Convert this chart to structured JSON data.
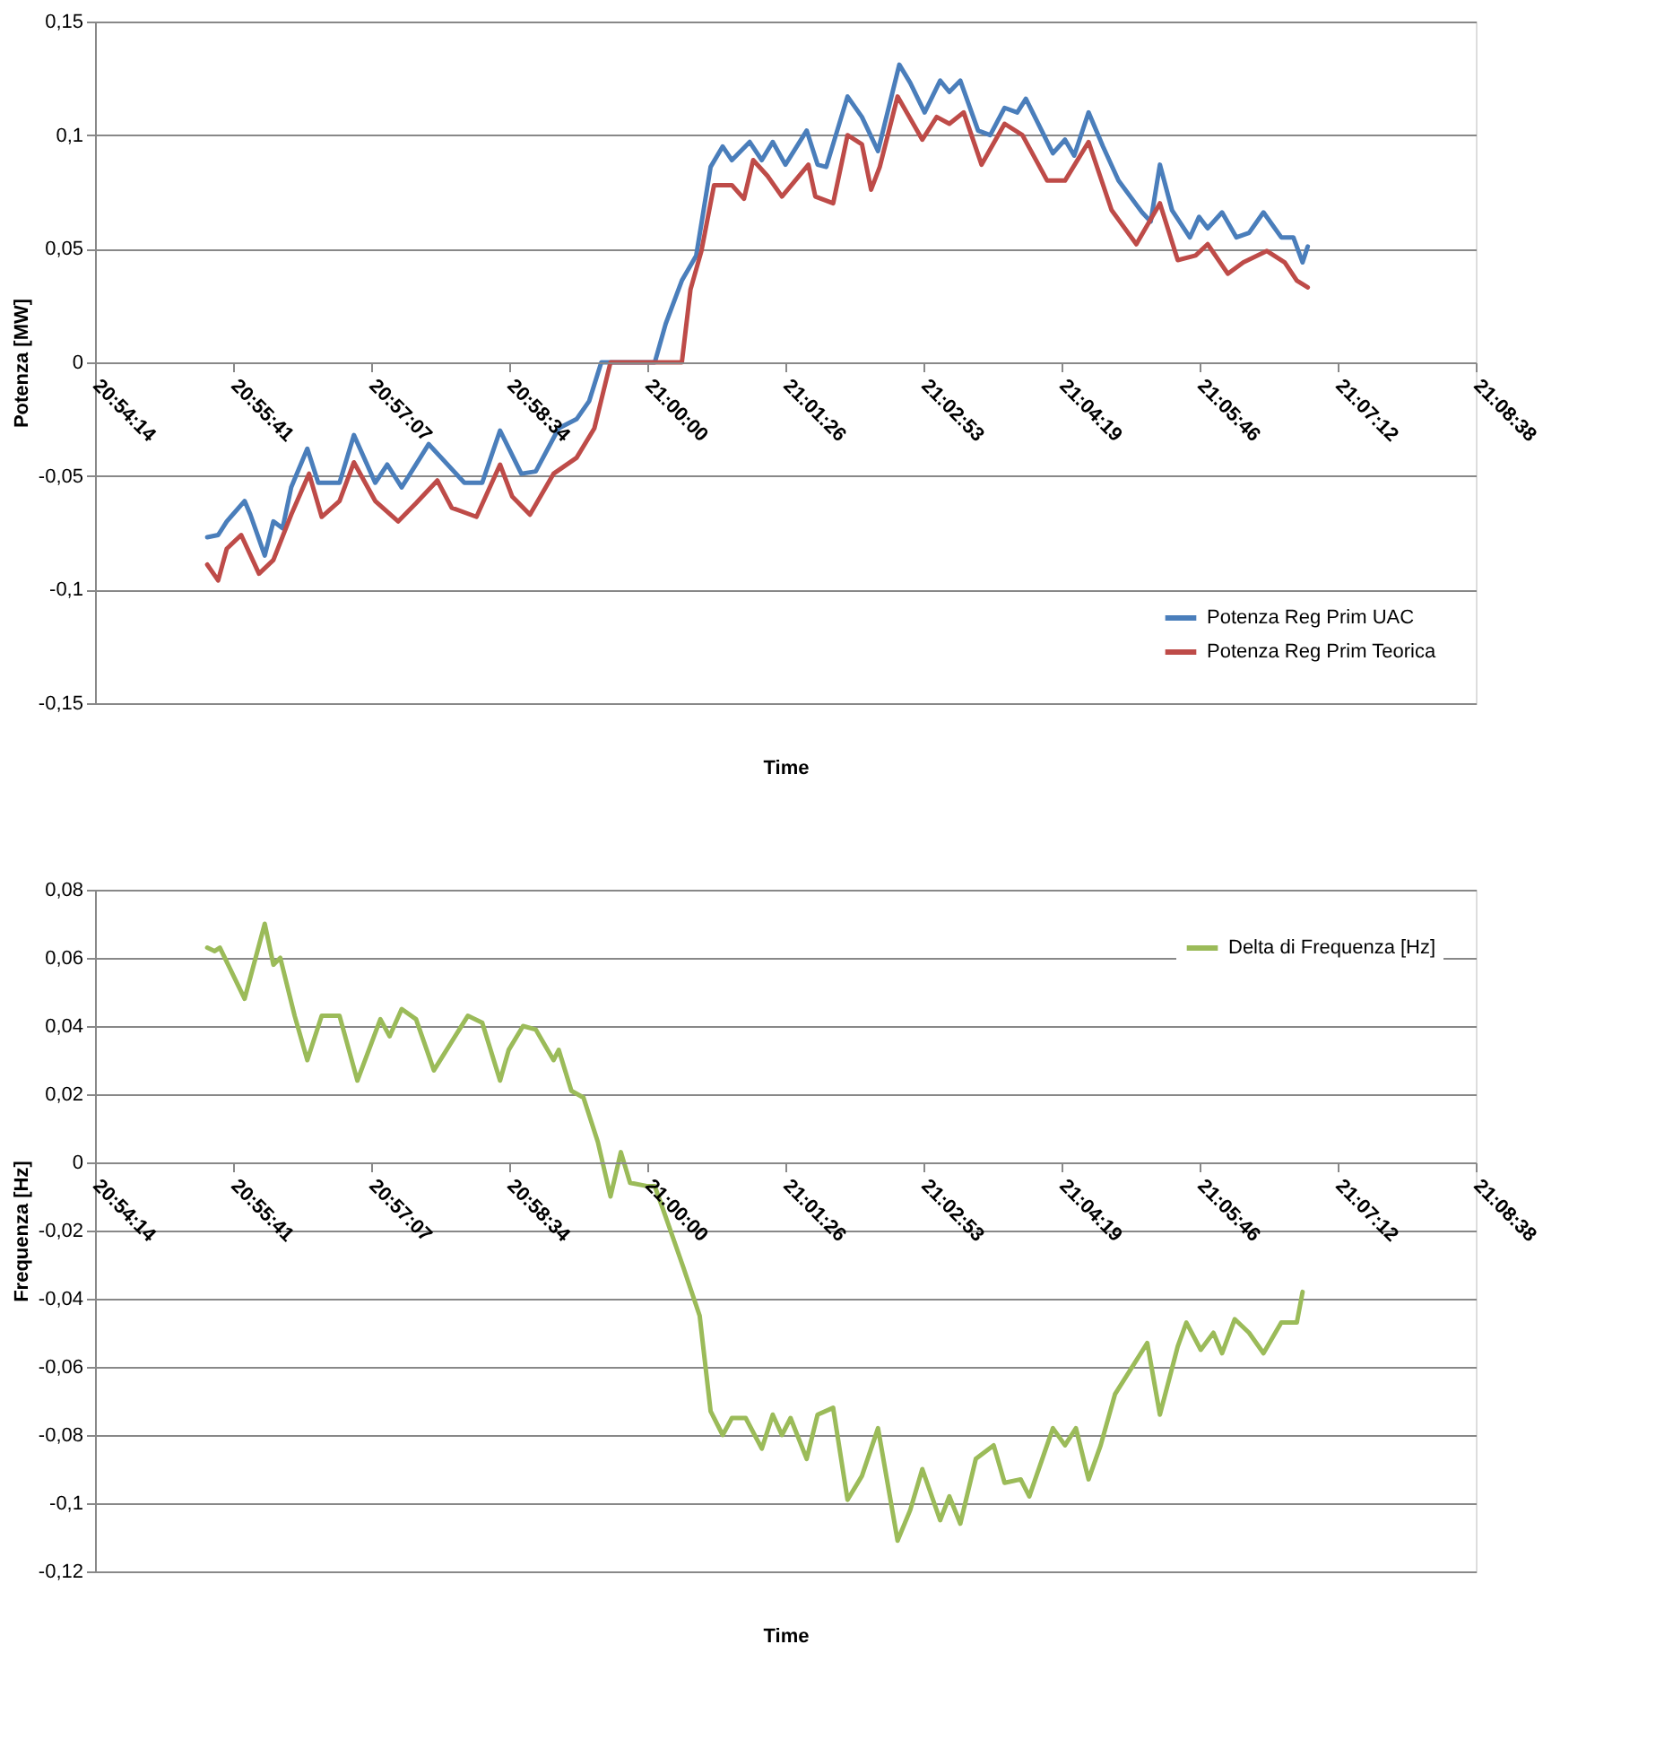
{
  "chart_data": [
    {
      "type": "line",
      "xlabel": "Time",
      "ylabel": "Potenza [MW]",
      "legend": "bottom right",
      "grid": "y",
      "line_style": "solid",
      "marker": "none",
      "xlim": [
        20.904,
        21.144
      ],
      "xticks": [
        {
          "value": 20.904,
          "label": "20:54:14"
        },
        {
          "value": 20.928,
          "label": "20:55:41"
        },
        {
          "value": 20.952,
          "label": "20:57:07"
        },
        {
          "value": 20.976,
          "label": "20:58:34"
        },
        {
          "value": 21.0,
          "label": "21:00:00"
        },
        {
          "value": 21.024,
          "label": "21:01:26"
        },
        {
          "value": 21.048,
          "label": "21:02:53"
        },
        {
          "value": 21.072,
          "label": "21:04:19"
        },
        {
          "value": 21.096,
          "label": "21:05:46"
        },
        {
          "value": 21.12,
          "label": "21:07:12"
        },
        {
          "value": 21.144,
          "label": "21:08:38"
        }
      ],
      "ylim": [
        -0.15,
        0.15
      ],
      "yticks": [
        {
          "value": -0.15,
          "label": "-0,15"
        },
        {
          "value": -0.1,
          "label": "-0,1"
        },
        {
          "value": -0.05,
          "label": "-0,05"
        },
        0,
        {
          "value": 0.05,
          "label": "0,05"
        },
        {
          "value": 0.1,
          "label": "0,1"
        },
        {
          "value": 0.15,
          "label": "0,15"
        }
      ],
      "series": [
        {
          "name": "Potenza Reg Prim UAC",
          "color": "#4a7ebb",
          "x": [
            20.9235,
            20.9254,
            20.9269,
            20.93,
            20.931,
            20.9335,
            20.935,
            20.9366,
            20.9381,
            20.9409,
            20.9428,
            20.9465,
            20.949,
            20.9527,
            20.9548,
            20.9573,
            20.962,
            20.9682,
            20.9713,
            20.9744,
            20.9781,
            20.9806,
            20.9846,
            20.9877,
            20.9899,
            20.992,
            21.0013,
            21.0032,
            21.006,
            21.0085,
            21.011,
            21.0131,
            21.0147,
            21.0178,
            21.0199,
            21.0218,
            21.024,
            21.0277,
            21.0296,
            21.0311,
            21.0348,
            21.0373,
            21.0401,
            21.0438,
            21.0457,
            21.0482,
            21.0509,
            21.0525,
            21.0544,
            21.0575,
            21.0596,
            21.0621,
            21.0643,
            21.0658,
            21.0705,
            21.0726,
            21.0742,
            21.0767,
            21.0792,
            21.0819,
            21.086,
            21.0875,
            21.0891,
            21.0912,
            21.0943,
            21.0959,
            21.0974,
            21.0999,
            21.1024,
            21.1046,
            21.1071,
            21.1102,
            21.1123,
            21.1139,
            21.1148
          ],
          "values": [
            -0.077,
            -0.076,
            -0.07,
            -0.061,
            -0.067,
            -0.085,
            -0.07,
            -0.073,
            -0.055,
            -0.038,
            -0.053,
            -0.053,
            -0.032,
            -0.053,
            -0.045,
            -0.055,
            -0.036,
            -0.053,
            -0.053,
            -0.03,
            -0.049,
            -0.048,
            -0.029,
            -0.025,
            -0.017,
            0,
            0,
            0.017,
            0.036,
            0.047,
            0.086,
            0.095,
            0.089,
            0.097,
            0.089,
            0.097,
            0.087,
            0.102,
            0.087,
            0.086,
            0.117,
            0.108,
            0.093,
            0.131,
            0.123,
            0.11,
            0.124,
            0.119,
            0.124,
            0.102,
            0.1,
            0.112,
            0.11,
            0.116,
            0.092,
            0.098,
            0.091,
            0.11,
            0.095,
            0.08,
            0.066,
            0.062,
            0.087,
            0.067,
            0.055,
            0.064,
            0.059,
            0.066,
            0.055,
            0.057,
            0.066,
            0.055,
            0.055,
            0.044,
            0.051
          ]
        },
        {
          "name": "Potenza Reg Prim Teorica",
          "color": "#be4b48",
          "x": [
            20.9235,
            20.9254,
            20.9269,
            20.9294,
            20.9325,
            20.935,
            20.9381,
            20.9412,
            20.9434,
            20.9465,
            20.949,
            20.9527,
            20.9567,
            20.9598,
            20.9635,
            20.966,
            20.9703,
            20.9744,
            20.9765,
            20.9796,
            20.9837,
            20.9877,
            20.9908,
            20.9936,
            21.006,
            21.0075,
            21.0094,
            21.0116,
            21.0147,
            21.0168,
            21.0184,
            21.0209,
            21.0234,
            21.028,
            21.0292,
            21.0323,
            21.0348,
            21.0373,
            21.0389,
            21.0404,
            21.0435,
            21.0478,
            21.0503,
            21.0525,
            21.055,
            21.0581,
            21.0621,
            21.0652,
            21.0695,
            21.0726,
            21.0767,
            21.0807,
            21.085,
            21.0891,
            21.0922,
            21.0953,
            21.0974,
            21.1009,
            21.1036,
            21.1077,
            21.1108,
            21.1129,
            21.1148
          ],
          "values": [
            -0.089,
            -0.096,
            -0.082,
            -0.076,
            -0.093,
            -0.087,
            -0.067,
            -0.049,
            -0.068,
            -0.061,
            -0.044,
            -0.061,
            -0.07,
            -0.062,
            -0.052,
            -0.064,
            -0.068,
            -0.045,
            -0.059,
            -0.067,
            -0.049,
            -0.042,
            -0.029,
            0,
            0,
            0.032,
            0.049,
            0.078,
            0.078,
            0.072,
            0.089,
            0.082,
            0.073,
            0.087,
            0.073,
            0.07,
            0.1,
            0.096,
            0.076,
            0.086,
            0.117,
            0.098,
            0.108,
            0.105,
            0.11,
            0.087,
            0.105,
            0.1,
            0.08,
            0.08,
            0.097,
            0.067,
            0.052,
            0.07,
            0.045,
            0.047,
            0.052,
            0.039,
            0.044,
            0.049,
            0.044,
            0.036,
            0.033
          ]
        }
      ]
    },
    {
      "type": "line",
      "xlabel": "Time",
      "ylabel": "Frequenza [Hz]",
      "legend": "top right",
      "grid": "y",
      "line_style": "solid",
      "marker": "none",
      "xlim": [
        20.904,
        21.144
      ],
      "xticks": [
        {
          "value": 20.904,
          "label": "20:54:14"
        },
        {
          "value": 20.928,
          "label": "20:55:41"
        },
        {
          "value": 20.952,
          "label": "20:57:07"
        },
        {
          "value": 20.976,
          "label": "20:58:34"
        },
        {
          "value": 21.0,
          "label": "21:00:00"
        },
        {
          "value": 21.024,
          "label": "21:01:26"
        },
        {
          "value": 21.048,
          "label": "21:02:53"
        },
        {
          "value": 21.072,
          "label": "21:04:19"
        },
        {
          "value": 21.096,
          "label": "21:05:46"
        },
        {
          "value": 21.12,
          "label": "21:07:12"
        },
        {
          "value": 21.144,
          "label": "21:08:38"
        }
      ],
      "ylim": [
        -0.12,
        0.08
      ],
      "yticks": [
        {
          "value": -0.12,
          "label": "-0,12"
        },
        {
          "value": -0.1,
          "label": "-0,1"
        },
        {
          "value": -0.08,
          "label": "-0,08"
        },
        {
          "value": -0.06,
          "label": "-0,06"
        },
        {
          "value": -0.04,
          "label": "-0,04"
        },
        {
          "value": -0.02,
          "label": "-0,02"
        },
        0,
        {
          "value": 0.02,
          "label": "0,02"
        },
        {
          "value": 0.04,
          "label": "0,04"
        },
        {
          "value": 0.06,
          "label": "0,06"
        },
        {
          "value": 0.08,
          "label": "0,08"
        }
      ],
      "series": [
        {
          "name": "Delta di Frequenza [Hz]",
          "color": "#9bbb59",
          "x": [
            20.9235,
            20.9248,
            20.9257,
            20.93,
            20.9335,
            20.935,
            20.9362,
            20.9387,
            20.9409,
            20.9434,
            20.9465,
            20.9496,
            20.9536,
            20.9552,
            20.9573,
            20.9598,
            20.9629,
            20.9688,
            20.9713,
            20.9744,
            20.9759,
            20.9784,
            20.9806,
            20.9837,
            20.9846,
            20.9868,
            20.9889,
            20.9914,
            20.9936,
            20.9954,
            20.997,
            21.0001,
            21.0013,
            21.0032,
            21.0063,
            21.0091,
            21.011,
            21.0131,
            21.0147,
            21.0171,
            21.0199,
            21.0218,
            21.0234,
            21.0249,
            21.0277,
            21.0296,
            21.0323,
            21.0348,
            21.0373,
            21.0401,
            21.0435,
            21.0457,
            21.0478,
            21.0509,
            21.0525,
            21.0544,
            21.0571,
            21.0602,
            21.0621,
            21.0649,
            21.0664,
            21.0705,
            21.0726,
            21.0745,
            21.0767,
            21.0788,
            21.0813,
            21.0869,
            21.0891,
            21.0922,
            21.0937,
            21.0962,
            21.0984,
            21.0999,
            21.1021,
            21.1046,
            21.1071,
            21.1102,
            21.1129,
            21.1139
          ],
          "values": [
            0.063,
            0.062,
            0.063,
            0.048,
            0.07,
            0.058,
            0.06,
            0.043,
            0.03,
            0.043,
            0.043,
            0.024,
            0.042,
            0.037,
            0.045,
            0.042,
            0.027,
            0.043,
            0.041,
            0.024,
            0.033,
            0.04,
            0.039,
            0.03,
            0.033,
            0.021,
            0.019,
            0.006,
            -0.01,
            0.003,
            -0.006,
            -0.007,
            -0.007,
            -0.016,
            -0.031,
            -0.045,
            -0.073,
            -0.08,
            -0.075,
            -0.075,
            -0.084,
            -0.074,
            -0.08,
            -0.075,
            -0.087,
            -0.074,
            -0.072,
            -0.099,
            -0.092,
            -0.078,
            -0.111,
            -0.102,
            -0.09,
            -0.105,
            -0.098,
            -0.106,
            -0.087,
            -0.083,
            -0.094,
            -0.093,
            -0.098,
            -0.078,
            -0.083,
            -0.078,
            -0.093,
            -0.083,
            -0.068,
            -0.053,
            -0.074,
            -0.054,
            -0.047,
            -0.055,
            -0.05,
            -0.056,
            -0.046,
            -0.05,
            -0.056,
            -0.047,
            -0.047,
            -0.038
          ]
        }
      ]
    }
  ]
}
